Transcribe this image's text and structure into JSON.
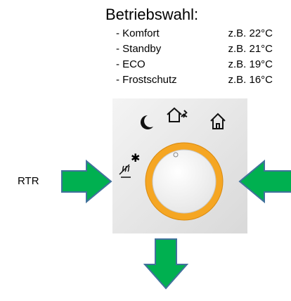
{
  "title": "Betriebswahl:",
  "modes": [
    {
      "name": "- Komfort",
      "example": "z.B. 22°C"
    },
    {
      "name": "- Standby",
      "example": "z.B. 21°C"
    },
    {
      "name": "- ECO",
      "example": "z.B. 19°C"
    },
    {
      "name": "- Frostschutz",
      "example": "z.B. 16°C"
    }
  ],
  "label": "RTR"
}
